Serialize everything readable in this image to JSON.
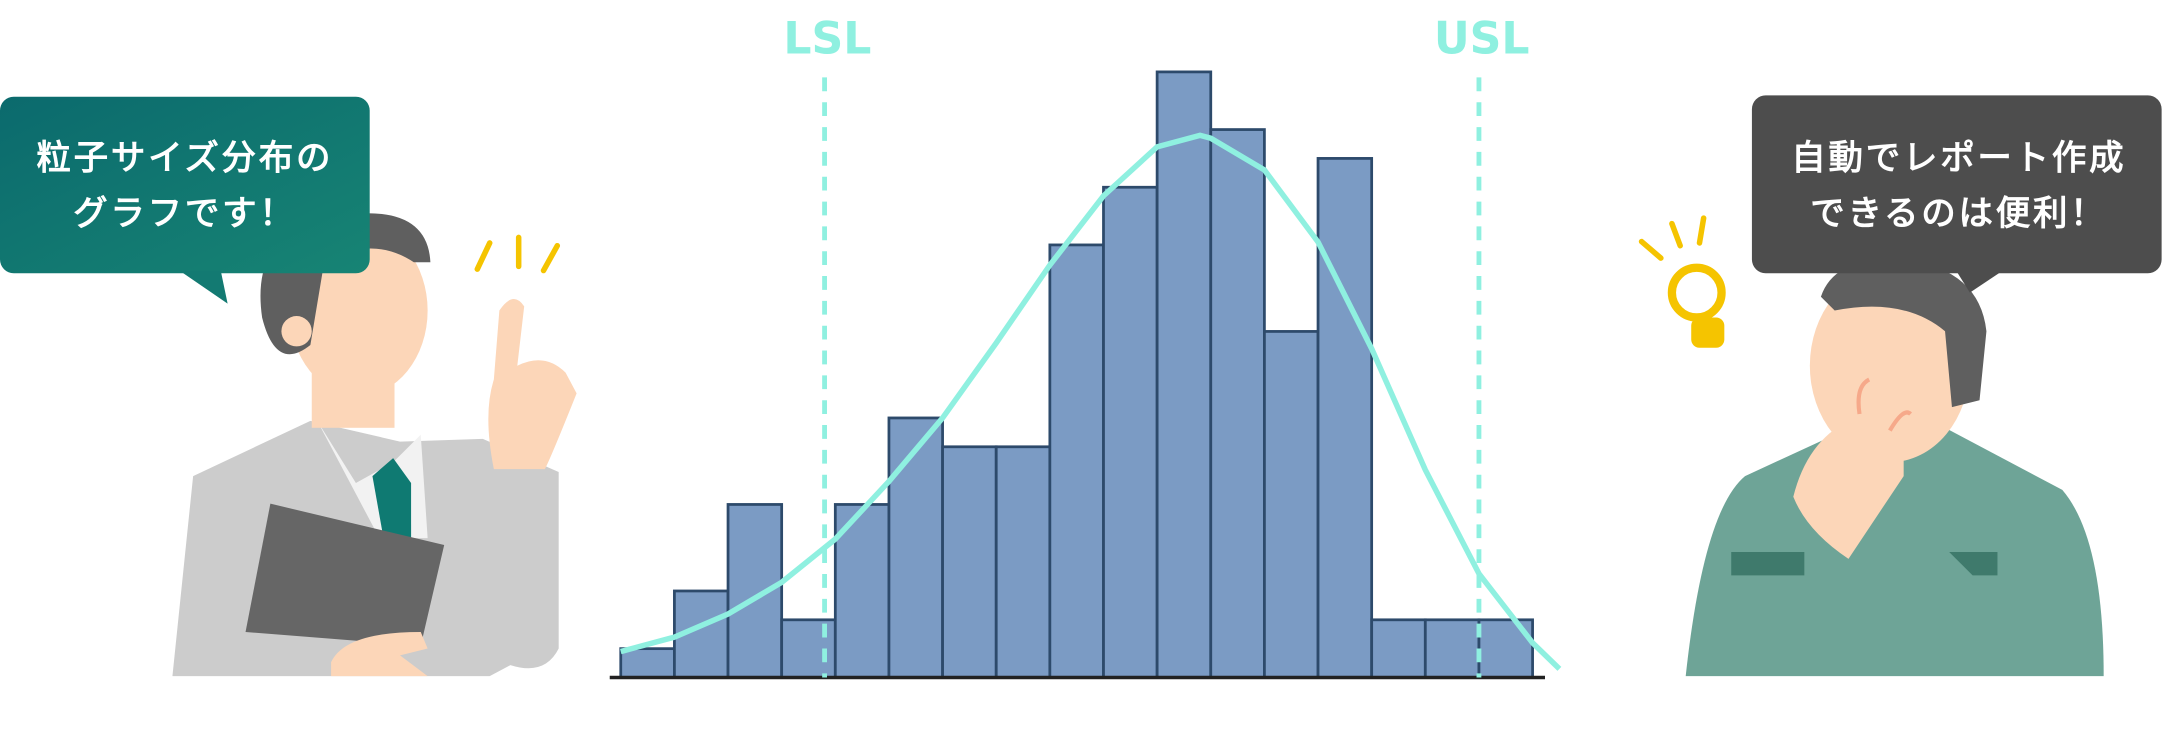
{
  "chart_data": {
    "type": "histogram",
    "bins": [
      0,
      1,
      2,
      3,
      4,
      5,
      6,
      7,
      8,
      9,
      10,
      11,
      12,
      13,
      14,
      15,
      16,
      17
    ],
    "values": [
      1,
      3,
      6,
      2,
      6,
      9,
      8,
      8,
      15,
      17,
      21,
      19,
      12,
      18,
      2,
      2,
      2
    ],
    "color": "#7b9bc4",
    "edge_color": "#2d4a6b",
    "xlim": [
      0,
      17
    ],
    "ylim": [
      0,
      21
    ],
    "curve": {
      "color": "#8ff0e0",
      "x": [
        0,
        1,
        2,
        3,
        4,
        5,
        6,
        7,
        8,
        9,
        10,
        10.8,
        11,
        12,
        13,
        14,
        15,
        16,
        17,
        17.5
      ],
      "y": [
        0.9,
        1.4,
        2.2,
        3.3,
        4.8,
        6.8,
        9.0,
        11.6,
        14.3,
        16.7,
        18.4,
        18.8,
        18.7,
        17.6,
        15.1,
        11.4,
        7.2,
        3.6,
        1.2,
        0.3
      ]
    },
    "spec_limits": [
      {
        "label": "LSL",
        "value": 3.8
      },
      {
        "label": "USL",
        "value": 16
      }
    ],
    "limit_color": "#8ff0e0"
  },
  "speech_bubbles": [
    {
      "lines": [
        "粒子サイズ分布の",
        "グラフです！"
      ]
    },
    {
      "lines": [
        "自動でレポート作成",
        "できるのは便利！"
      ]
    }
  ]
}
